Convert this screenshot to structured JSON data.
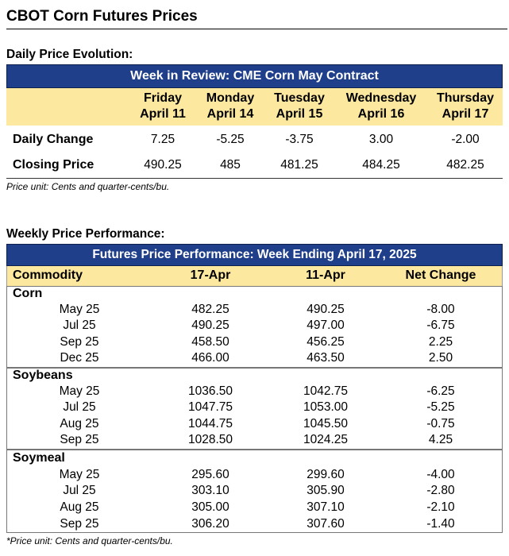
{
  "page_title": "CBOT Corn Futures Prices",
  "daily": {
    "section_title": "Daily Price Evolution:",
    "banner": "Week in Review: CME Corn May Contract",
    "columns": [
      {
        "day": "Friday",
        "date": "April 11"
      },
      {
        "day": "Monday",
        "date": "April 14"
      },
      {
        "day": "Tuesday",
        "date": "April 15"
      },
      {
        "day": "Wednesday",
        "date": "April 16"
      },
      {
        "day": "Thursday",
        "date": "April 17"
      }
    ],
    "rows": [
      {
        "label": "Daily Change",
        "values": [
          "7.25",
          "-5.25",
          "-3.75",
          "3.00",
          "-2.00"
        ]
      },
      {
        "label": "Closing Price",
        "values": [
          "490.25",
          "485",
          "481.25",
          "484.25",
          "482.25"
        ]
      }
    ],
    "note": "Price unit: Cents and quarter-cents/bu."
  },
  "weekly": {
    "section_title": "Weekly Price Performance:",
    "banner": "Futures Price Performance: Week Ending April 17, 2025",
    "headers": [
      "Commodity",
      "17-Apr",
      "11-Apr",
      "Net Change"
    ],
    "groups": [
      {
        "name": "Corn",
        "rows": [
          {
            "contract": "May 25",
            "v1": "482.25",
            "v2": "490.25",
            "change": "-8.00"
          },
          {
            "contract": "Jul 25",
            "v1": "490.25",
            "v2": "497.00",
            "change": "-6.75"
          },
          {
            "contract": "Sep 25",
            "v1": "458.50",
            "v2": "456.25",
            "change": "2.25"
          },
          {
            "contract": "Dec 25",
            "v1": "466.00",
            "v2": "463.50",
            "change": "2.50"
          }
        ]
      },
      {
        "name": "Soybeans",
        "rows": [
          {
            "contract": "May 25",
            "v1": "1036.50",
            "v2": "1042.75",
            "change": "-6.25"
          },
          {
            "contract": "Jul 25",
            "v1": "1047.75",
            "v2": "1053.00",
            "change": "-5.25"
          },
          {
            "contract": "Aug 25",
            "v1": "1044.75",
            "v2": "1045.50",
            "change": "-0.75"
          },
          {
            "contract": "Sep 25",
            "v1": "1028.50",
            "v2": "1024.25",
            "change": "4.25"
          }
        ]
      },
      {
        "name": "Soymeal",
        "rows": [
          {
            "contract": "May 25",
            "v1": "295.60",
            "v2": "299.60",
            "change": "-4.00"
          },
          {
            "contract": "Jul 25",
            "v1": "303.10",
            "v2": "305.90",
            "change": "-2.80"
          },
          {
            "contract": "Aug 25",
            "v1": "305.00",
            "v2": "307.10",
            "change": "-2.10"
          },
          {
            "contract": "Sep 25",
            "v1": "306.20",
            "v2": "307.60",
            "change": "-1.40"
          }
        ]
      }
    ],
    "note": "*Price unit: Cents and quarter-cents/bu."
  }
}
